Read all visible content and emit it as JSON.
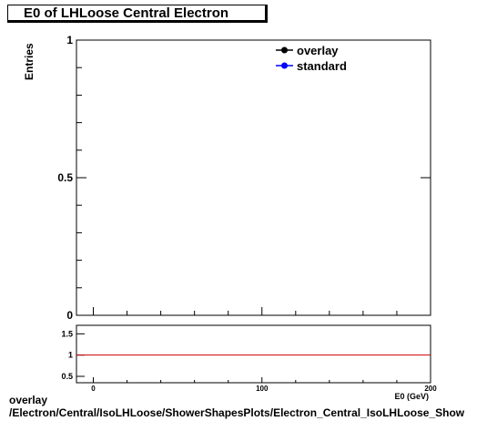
{
  "chart_data": [
    {
      "type": "line",
      "title": "E0 of LHLoose Central  Electron",
      "ylabel": "Entries",
      "xlabel": "E0 (GeV)",
      "xlim": [
        -10,
        200
      ],
      "ylim": [
        0,
        1
      ],
      "x_ticks": [
        "0",
        "100",
        "200"
      ],
      "y_ticks": [
        "0",
        "0.5",
        "1"
      ],
      "legend_position": "top-right",
      "series": [
        {
          "name": "overlay",
          "color": "#000000",
          "marker": "circle",
          "x": [],
          "y": []
        },
        {
          "name": "standard",
          "color": "#0000ff",
          "marker": "circle",
          "x": [],
          "y": []
        }
      ]
    },
    {
      "type": "line",
      "title": "",
      "xlim": [
        -10,
        200
      ],
      "ylim": [
        0.35,
        1.7
      ],
      "x_ticks": [
        "0",
        "100",
        "200"
      ],
      "y_ticks": [
        "0.5",
        "1",
        "1.5"
      ],
      "reference_line": {
        "y": 1,
        "color": "#cc0000"
      },
      "series": []
    }
  ],
  "footer": {
    "line1": "overlay",
    "line2": "/Electron/Central/IsoLHLoose/ShowerShapesPlots/Electron_Central_IsoLHLoose_Show"
  }
}
